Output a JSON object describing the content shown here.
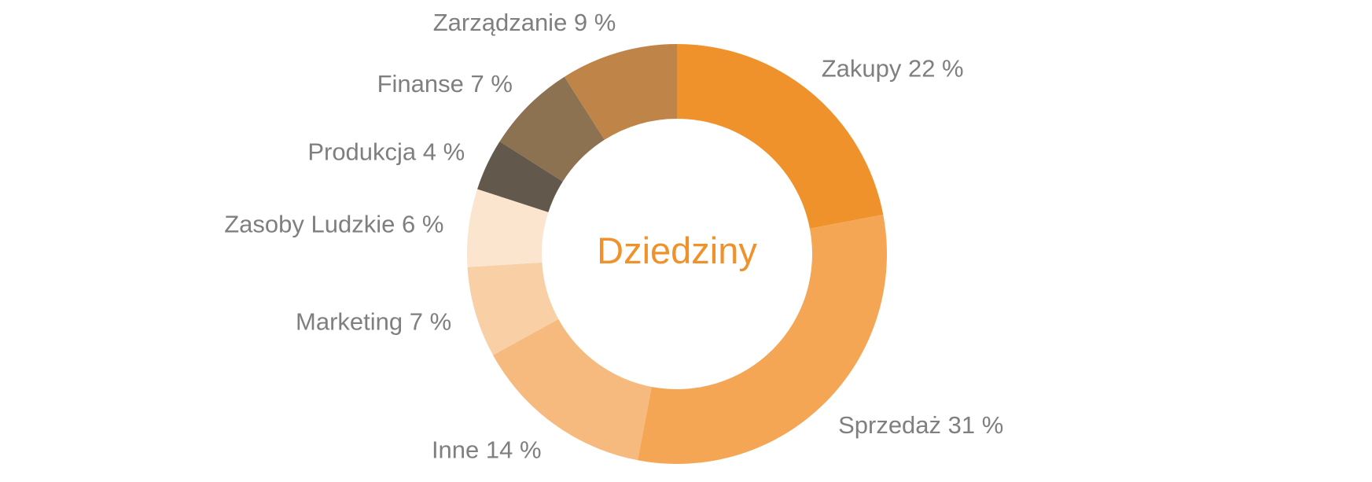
{
  "chart_data": {
    "type": "pie",
    "variant": "donut",
    "title": "Dziedziny",
    "title_color": "#f0922b",
    "label_color": "#7f7f7f",
    "legend": "none",
    "slices": [
      {
        "label": "Zakupy",
        "value": 22,
        "display": "Zakupy 22 %",
        "color": "#f0922b"
      },
      {
        "label": "Sprzedaż",
        "value": 31,
        "display": "Sprzedaż 31 %",
        "color": "#f4a655"
      },
      {
        "label": "Inne",
        "value": 14,
        "display": "Inne 14 %",
        "color": "#f6ba7e"
      },
      {
        "label": "Marketing",
        "value": 7,
        "display": "Marketing 7 %",
        "color": "#f9cfa5"
      },
      {
        "label": "Zasoby Ludzkie",
        "value": 6,
        "display": "Zasoby Ludzkie 6 %",
        "color": "#fce5cf"
      },
      {
        "label": "Produkcja",
        "value": 4,
        "display": "Produkcja 4 %",
        "color": "#62584c"
      },
      {
        "label": "Finanse",
        "value": 7,
        "display": "Finanse 7 %",
        "color": "#8d7252"
      },
      {
        "label": "Zarządzanie",
        "value": 9,
        "display": "Zarządzanie 9 %",
        "color": "#bf8447"
      }
    ]
  }
}
